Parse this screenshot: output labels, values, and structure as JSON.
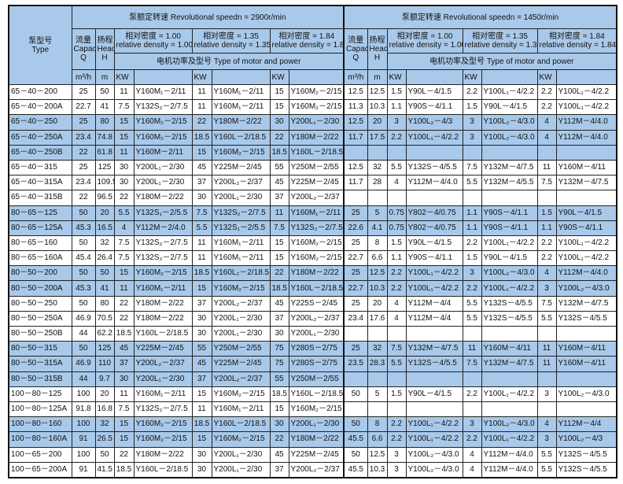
{
  "header": {
    "type_cn": "泵型号",
    "type_en": "Type",
    "speed_groups": [
      {
        "title": "泵额定转速 Revolutional speedn = 2900r/min"
      },
      {
        "title": "泵额定转速 Revolutional speedn = 1450r/min"
      }
    ],
    "capacity_cn": "流量",
    "capacity_en": "Capacity",
    "capacity_sym": "Q",
    "capacity_unit": "m³/h",
    "head_cn": "扬程",
    "head_en": "Head",
    "head_sym": "H",
    "head_unit": "m",
    "densities": [
      {
        "cn": "相对密度 = 1.00",
        "en": "relative density = 1.00"
      },
      {
        "cn": "相对密度 = 1.35",
        "en": "relative density = 1.35"
      },
      {
        "cn": "相对密度 = 1.84",
        "en": "relative density = 1.84"
      }
    ],
    "motor_label": "电机功率及型号 Type of motor and power",
    "kw": "KW"
  },
  "colors": {
    "header_bg": "#a9c9ea",
    "row_highlight": "#a9c9ea"
  },
  "rows": [
    {
      "blue": false,
      "c": [
        "65－40－200",
        "25",
        "50",
        "11",
        "Y160M₁－2/11",
        "11",
        "Y160M₁－2/11",
        "15",
        "Y160M₂－2/15",
        "12.5",
        "12.5",
        "1.5",
        "Y90L－4/1.5",
        "2.2",
        "Y100L₁－4/2.2",
        "2.2",
        "Y100L₁－4/2.2"
      ]
    },
    {
      "blue": false,
      "c": [
        "65－40－200A",
        "22.7",
        "41",
        "7.5",
        "Y132S₂－2/7.5",
        "11",
        "Y160M₁－2/11",
        "15",
        "Y160M₂－2/15",
        "11.3",
        "10.3",
        "1.1",
        "Y90S－4/1.1",
        "1.5",
        "Y90L－4/1.5",
        "2.2",
        "Y100L₁－4/2.2"
      ]
    },
    {
      "blue": true,
      "c": [
        "65－40－250",
        "25",
        "80",
        "15",
        "Y160M₂－2/15",
        "22",
        "Y180M－2/22",
        "30",
        "Y200L₁－2/30",
        "12.5",
        "20",
        "3",
        "Y100L₂－4/3",
        "3",
        "Y100L₂－4/3.0",
        "4",
        "Y112M－4/4.0"
      ]
    },
    {
      "blue": true,
      "c": [
        "65－40－250A",
        "23.4",
        "74.8",
        "15",
        "Y160M₂－2/15",
        "18.5",
        "Y160L－2/18.5",
        "22",
        "Y180M－2/22",
        "11.7",
        "17.5",
        "2.2",
        "Y100L₁－4/2.2",
        "3",
        "Y100L₂－4/3.0",
        "4",
        "Y112M－4/4.0"
      ]
    },
    {
      "blue": true,
      "c": [
        "65－40－250B",
        "22",
        "61.8",
        "11",
        "Y160M－2/11",
        "15",
        "Y160M₂－2/15",
        "18.5",
        "Y160L－2/18.5",
        "",
        "",
        "",
        "",
        "",
        "",
        "",
        ""
      ]
    },
    {
      "blue": false,
      "c": [
        "65－40－315",
        "25",
        "125",
        "30",
        "Y200L₁－2/30",
        "45",
        "Y225M－2/45",
        "55",
        "Y250M－2/55",
        "12.5",
        "32",
        "5.5",
        "Y132S－4/5.5",
        "7.5",
        "Y132M－4/7.5",
        "11",
        "Y160M－4/11"
      ]
    },
    {
      "blue": false,
      "c": [
        "65－40－315A",
        "23.4",
        "109.5",
        "30",
        "Y200L₁－2/30",
        "37",
        "Y200L₂－2/37",
        "45",
        "Y225M－2/45",
        "11.7",
        "28",
        "4",
        "Y112M－4/4.0",
        "5.5",
        "Y132M－4/5.5",
        "7.5",
        "Y132M－4/7.5"
      ]
    },
    {
      "blue": false,
      "c": [
        "65－40－315B",
        "22",
        "96.5",
        "22",
        "Y180M－2/22",
        "30",
        "Y200L₁－2/30",
        "37",
        "Y200L₂－2/37",
        "",
        "",
        "",
        "",
        "",
        "",
        "",
        ""
      ]
    },
    {
      "blue": true,
      "c": [
        "80－65－125",
        "50",
        "20",
        "5.5",
        "Y132S₁－2/5.5",
        "7.5",
        "Y132S₂－2/7.5",
        "11",
        "Y160M₁－2/11",
        "25",
        "5",
        "0.75",
        "Y802－4/0.75",
        "1.1",
        "Y90S－4/1.1",
        "1.5",
        "Y90L－4/1.5"
      ]
    },
    {
      "blue": true,
      "c": [
        "80－65－125A",
        "45.3",
        "16.5",
        "4",
        "Y112M－2/4.0",
        "5.5",
        "Y132S₁－2/5.5",
        "7.5",
        "Y132S₂－2/7.5",
        "22.6",
        "4.1",
        "0.75",
        "Y802－4/0.75",
        "1.1",
        "Y90S－4/1.1",
        "1.1",
        "Y90S－4/1.1"
      ]
    },
    {
      "blue": false,
      "c": [
        "80－65－160",
        "50",
        "32",
        "7.5",
        "Y132S₂－2/7.5",
        "11",
        "Y160M₁－2/11",
        "15",
        "Y160M₂－2/15",
        "25",
        "8",
        "1.5",
        "Y90L－4/1.5",
        "2.2",
        "Y100L₁－4/2.2",
        "2.2",
        "Y100L₁－4/2.2"
      ]
    },
    {
      "blue": false,
      "c": [
        "80－65－160A",
        "45.4",
        "26.4",
        "7.5",
        "Y132S₂－2/7.5",
        "11",
        "Y160M₁－2/11",
        "15",
        "Y160M₂－2/15",
        "22.7",
        "6.6",
        "1.1",
        "Y90S－4/1.1",
        "1.5",
        "Y90L－4/1.5",
        "2.2",
        "Y100L₁－4/2.2"
      ]
    },
    {
      "blue": true,
      "c": [
        "80－50－200",
        "50",
        "50",
        "15",
        "Y160M₂－2/15",
        "18.5",
        "Y160L₂－2/18.5",
        "22",
        "Y180M－2/22",
        "25",
        "12.5",
        "2.2",
        "Y100L₁－4/2.2",
        "3",
        "Y100L₂－4/3.0",
        "4",
        "Y112M－4/4.0"
      ]
    },
    {
      "blue": true,
      "c": [
        "80－50－200A",
        "45.3",
        "41",
        "11",
        "Y160M₁－2/11",
        "15",
        "Y160M₂－2/15",
        "18.5",
        "Y160L－2/18.5",
        "22.7",
        "10.3",
        "2.2",
        "Y100L₁－4/2.2",
        "2.2",
        "Y100L₁－4/2.2",
        "3",
        "Y100L₂－4/3.0"
      ]
    },
    {
      "blue": false,
      "c": [
        "80－50－250",
        "50",
        "80",
        "22",
        "Y180M－2/22",
        "37",
        "Y200L₂－2/37",
        "45",
        "Y225S－2/45",
        "25",
        "20",
        "4",
        "Y112M－4/4",
        "5.5",
        "Y132S－4/5.5",
        "7.5",
        "Y132M－4/7.5"
      ]
    },
    {
      "blue": false,
      "c": [
        "80－50－250A",
        "46.9",
        "70.5",
        "22",
        "Y180M－2/22",
        "30",
        "Y200L₁－2/30",
        "37",
        "Y200L₂－2/37",
        "23.4",
        "17.6",
        "4",
        "Y112M－4/4",
        "5.5",
        "Y132S－4/5.5",
        "5.5",
        "Y132S－4/5.5"
      ]
    },
    {
      "blue": false,
      "c": [
        "80－50－250B",
        "44",
        "62.2",
        "18.5",
        "Y160L－2/18.5",
        "30",
        "Y200L₁－2/30",
        "30",
        "Y200L₁－2/30",
        "",
        "",
        "",
        "",
        "",
        "",
        "",
        ""
      ]
    },
    {
      "blue": true,
      "c": [
        "80－50－315",
        "50",
        "125",
        "45",
        "Y225M－2/45",
        "55",
        "Y250M－2/55",
        "75",
        "Y280S－2/75",
        "25",
        "32",
        "7.5",
        "Y132M－4/7.5",
        "11",
        "Y160M－4/11",
        "11",
        "Y160M－4/11"
      ]
    },
    {
      "blue": true,
      "c": [
        "80－50－315A",
        "46.9",
        "110",
        "37",
        "Y200L₂－2/37",
        "45",
        "Y225M－2/45",
        "75",
        "Y280S－2/75",
        "23.5",
        "28.3",
        "5.5",
        "Y132S－4/5.5",
        "7.5",
        "Y132M－4/7.5",
        "11",
        "Y160M－4/11"
      ]
    },
    {
      "blue": true,
      "c": [
        "80－50－315B",
        "44",
        "9.7",
        "30",
        "Y200L₁－2/30",
        "37",
        "Y200L₂－2/37",
        "55",
        "Y250M－2/55",
        "",
        "",
        "",
        "",
        "",
        "",
        "",
        ""
      ]
    },
    {
      "blue": false,
      "c": [
        "100－80－125",
        "100",
        "20",
        "11",
        "Y160M₁－2/11",
        "15",
        "Y160M₂－2/15",
        "18.5",
        "Y160L－2/18.5",
        "50",
        "5",
        "1.5",
        "Y90L－4/1.5",
        "2.2",
        "Y100L₁－4/2.2",
        "3",
        "Y100L₂－4/3.0"
      ]
    },
    {
      "blue": false,
      "c": [
        "100－80－125A",
        "91.8",
        "16.8",
        "7.5",
        "Y132S₂－2/7.5",
        "11",
        "Y160M₁－2/11",
        "15",
        "Y160M₂－2/15",
        "",
        "",
        "",
        "",
        "",
        "",
        "",
        ""
      ]
    },
    {
      "blue": true,
      "c": [
        "100－80－160",
        "100",
        "32",
        "15",
        "Y160M₂－2/15",
        "18.5",
        "Y160L－2/18.5",
        "30",
        "Y200L₁－2/30",
        "50",
        "8",
        "2.2",
        "Y100L₁－4/2.2",
        "3",
        "Y100L₂－4/3.0",
        "4",
        "Y112M－4/4"
      ]
    },
    {
      "blue": true,
      "c": [
        "100－80－160A",
        "91",
        "26.5",
        "15",
        "Y160M₂－2/15",
        "15",
        "Y160M₂－2/15",
        "22",
        "Y180M－2/22",
        "45.5",
        "6.6",
        "2.2",
        "Y100L₁－4/2.2",
        "2.2",
        "Y100L₁－4/2.2",
        "3",
        "Y100L₂－4/3"
      ]
    },
    {
      "blue": false,
      "c": [
        "100－65－200",
        "100",
        "50",
        "22",
        "Y180M－2/22",
        "30",
        "Y200L₁－2/30",
        "45",
        "Y225M－2/45",
        "50",
        "12.5",
        "3",
        "Y100L₂－4/3.0",
        "4",
        "Y112M－4/4.0",
        "5.5",
        "Y132S－4/5.5"
      ]
    },
    {
      "blue": false,
      "c": [
        "100－65－200A",
        "91",
        "41.5",
        "18.5",
        "Y160L－2/18.5",
        "30",
        "Y200L₁－2/30",
        "37",
        "Y200L₂－2/37",
        "45.5",
        "10.3",
        "3",
        "Y100L₂－4/3.0",
        "4",
        "Y112M－4/4.0",
        "5.5",
        "Y132S－4/5.5"
      ]
    }
  ]
}
